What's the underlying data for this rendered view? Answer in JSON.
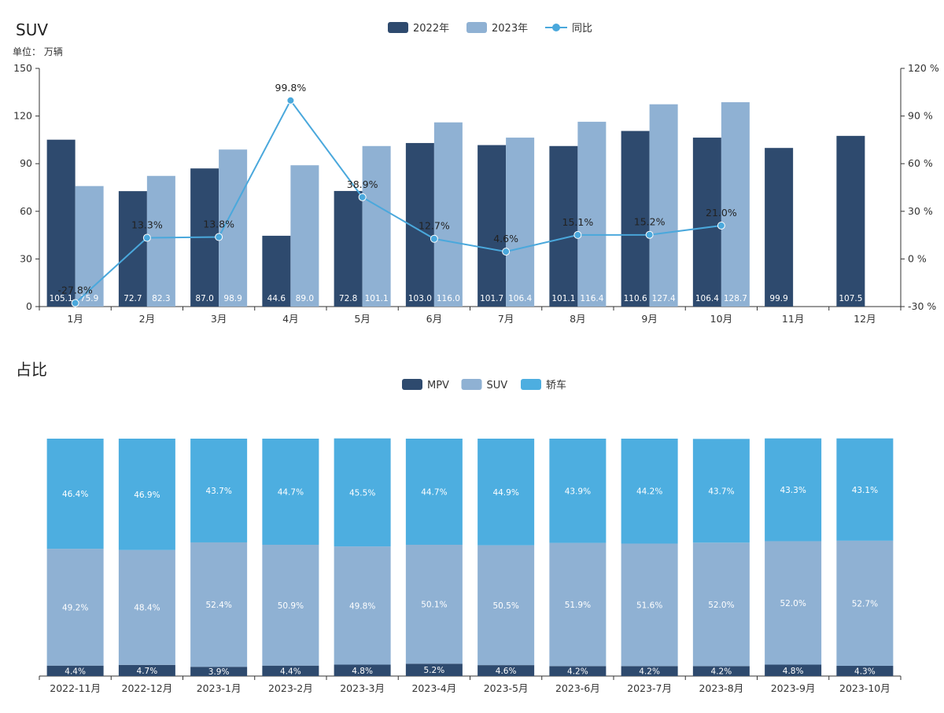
{
  "chart_data": [
    {
      "type": "bar",
      "title": "SUV",
      "unit_label": "单位： 万辆",
      "categories": [
        "1月",
        "2月",
        "3月",
        "4月",
        "5月",
        "6月",
        "7月",
        "8月",
        "9月",
        "10月",
        "11月",
        "12月"
      ],
      "series": [
        {
          "name": "2022年",
          "type": "bar",
          "color": "#2e4a6e",
          "values": [
            105.1,
            72.7,
            87.0,
            44.6,
            72.8,
            103.0,
            101.7,
            101.1,
            110.6,
            106.4,
            99.9,
            107.5
          ],
          "labels": [
            "105.1",
            "72.7",
            "87.0",
            "44.6",
            "72.8",
            "103.0",
            "101.7",
            "101.1",
            "110.6",
            "106.4",
            "99.9",
            "107.5"
          ]
        },
        {
          "name": "2023年",
          "type": "bar",
          "color": "#8fb1d3",
          "values": [
            75.9,
            82.3,
            98.9,
            89.0,
            101.1,
            116.0,
            106.4,
            116.4,
            127.4,
            128.7,
            null,
            null
          ],
          "labels": [
            "75.9",
            "82.3",
            "98.9",
            "89.0",
            "101.1",
            "116.0",
            "106.4",
            "116.4",
            "127.4",
            "128.7",
            "",
            ""
          ]
        },
        {
          "name": "同比",
          "type": "line",
          "color": "#4aa8dc",
          "axis": "right",
          "values": [
            -27.8,
            13.3,
            13.8,
            99.8,
            38.9,
            12.7,
            4.6,
            15.1,
            15.2,
            21.0,
            null,
            null
          ],
          "labels": [
            "-27.8%",
            "13.3%",
            "13.8%",
            "99.8%",
            "38.9%",
            "12.7%",
            "4.6%",
            "15.1%",
            "15.2%",
            "21.0%",
            "",
            ""
          ]
        }
      ],
      "y_left": {
        "min": 0,
        "max": 150,
        "ticks": [
          "0",
          "30",
          "60",
          "90",
          "120",
          "150"
        ],
        "tick_values": [
          0,
          30,
          60,
          90,
          120,
          150
        ]
      },
      "y_right": {
        "min": -30,
        "max": 120,
        "ticks": [
          "-30 %",
          "0 %",
          "30 %",
          "60 %",
          "90 %",
          "120 %"
        ],
        "tick_values": [
          -30,
          0,
          30,
          60,
          90,
          120
        ]
      },
      "legend_position": "top-center",
      "grid": false
    },
    {
      "type": "bar",
      "stacked": true,
      "title": "占比",
      "categories": [
        "2022-11月",
        "2022-12月",
        "2023-1月",
        "2023-2月",
        "2023-3月",
        "2023-4月",
        "2023-5月",
        "2023-6月",
        "2023-7月",
        "2023-8月",
        "2023-9月",
        "2023-10月"
      ],
      "series": [
        {
          "name": "MPV",
          "color": "#2e4a6e",
          "values": [
            4.4,
            4.7,
            3.9,
            4.4,
            4.8,
            5.2,
            4.6,
            4.2,
            4.2,
            4.2,
            4.8,
            4.3
          ],
          "labels": [
            "4.4%",
            "4.7%",
            "3.9%",
            "4.4%",
            "4.8%",
            "5.2%",
            "4.6%",
            "4.2%",
            "4.2%",
            "4.2%",
            "4.8%",
            "4.3%"
          ]
        },
        {
          "name": "SUV",
          "color": "#8fb1d3",
          "values": [
            49.2,
            48.4,
            52.4,
            50.9,
            49.8,
            50.1,
            50.5,
            51.9,
            51.6,
            52.0,
            52.0,
            52.7
          ],
          "labels": [
            "49.2%",
            "48.4%",
            "52.4%",
            "50.9%",
            "49.8%",
            "50.1%",
            "50.5%",
            "51.9%",
            "51.6%",
            "52.0%",
            "52.0%",
            "52.7%"
          ]
        },
        {
          "name": "轿车",
          "color": "#4daee0",
          "values": [
            46.4,
            46.9,
            43.7,
            44.7,
            45.5,
            44.7,
            44.9,
            43.9,
            44.2,
            43.7,
            43.3,
            43.1
          ],
          "labels": [
            "46.4%",
            "46.9%",
            "43.7%",
            "44.7%",
            "45.5%",
            "44.7%",
            "44.9%",
            "43.9%",
            "44.2%",
            "43.7%",
            "43.3%",
            "43.1%"
          ]
        }
      ],
      "legend_position": "top-center",
      "grid": false
    }
  ]
}
